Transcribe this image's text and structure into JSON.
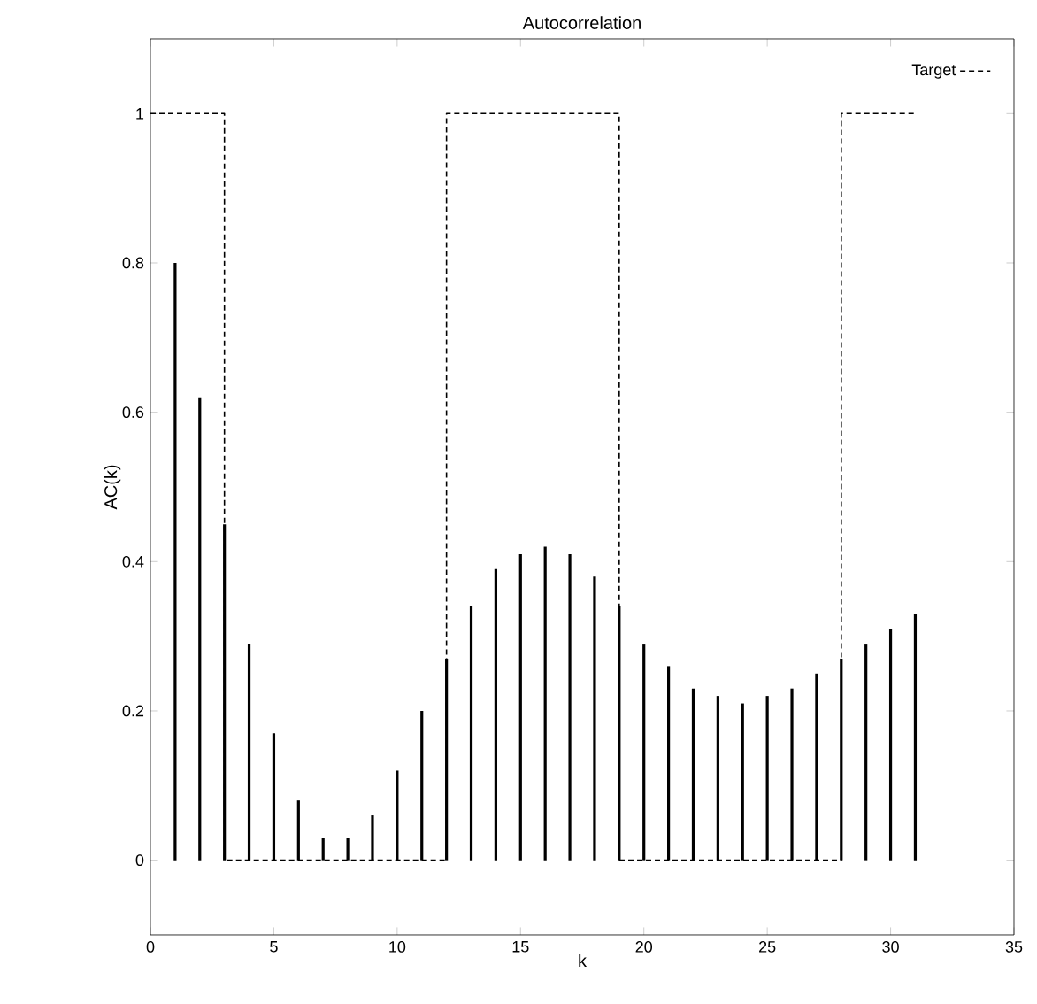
{
  "chart_data": {
    "type": "bar",
    "title": "Autocorrelation",
    "xlabel": "k",
    "ylabel": "AC(k)",
    "xlim": [
      0,
      35
    ],
    "ylim": [
      -0.1,
      1.1
    ],
    "xticks": [
      0,
      5,
      10,
      15,
      20,
      25,
      30,
      35
    ],
    "yticks": [
      0,
      0.2,
      0.4,
      0.6,
      0.8,
      1
    ],
    "legend": "top right",
    "series": [
      {
        "color": "#000000",
        "x": [
          1,
          2,
          3,
          4,
          5,
          6,
          7,
          8,
          9,
          10,
          11,
          12,
          13,
          14,
          15,
          16,
          17,
          18,
          19,
          20,
          21,
          22,
          23,
          24,
          25,
          26,
          27,
          28,
          29,
          30,
          31
        ],
        "values": [
          0.8,
          0.62,
          0.45,
          0.29,
          0.17,
          0.08,
          0.03,
          0.03,
          0.06,
          0.12,
          0.2,
          0.27,
          0.34,
          0.39,
          0.41,
          0.42,
          0.41,
          0.38,
          0.34,
          0.29,
          0.26,
          0.23,
          0.22,
          0.21,
          0.22,
          0.23,
          0.25,
          0.27,
          0.29,
          0.31,
          0.33
        ]
      },
      {
        "type": "step",
        "name": "Target",
        "color": "#000000",
        "line_style": "dashed",
        "x": [
          0,
          3,
          12,
          19,
          28,
          31
        ],
        "values": [
          1,
          0,
          1,
          0,
          1,
          1
        ]
      }
    ]
  }
}
